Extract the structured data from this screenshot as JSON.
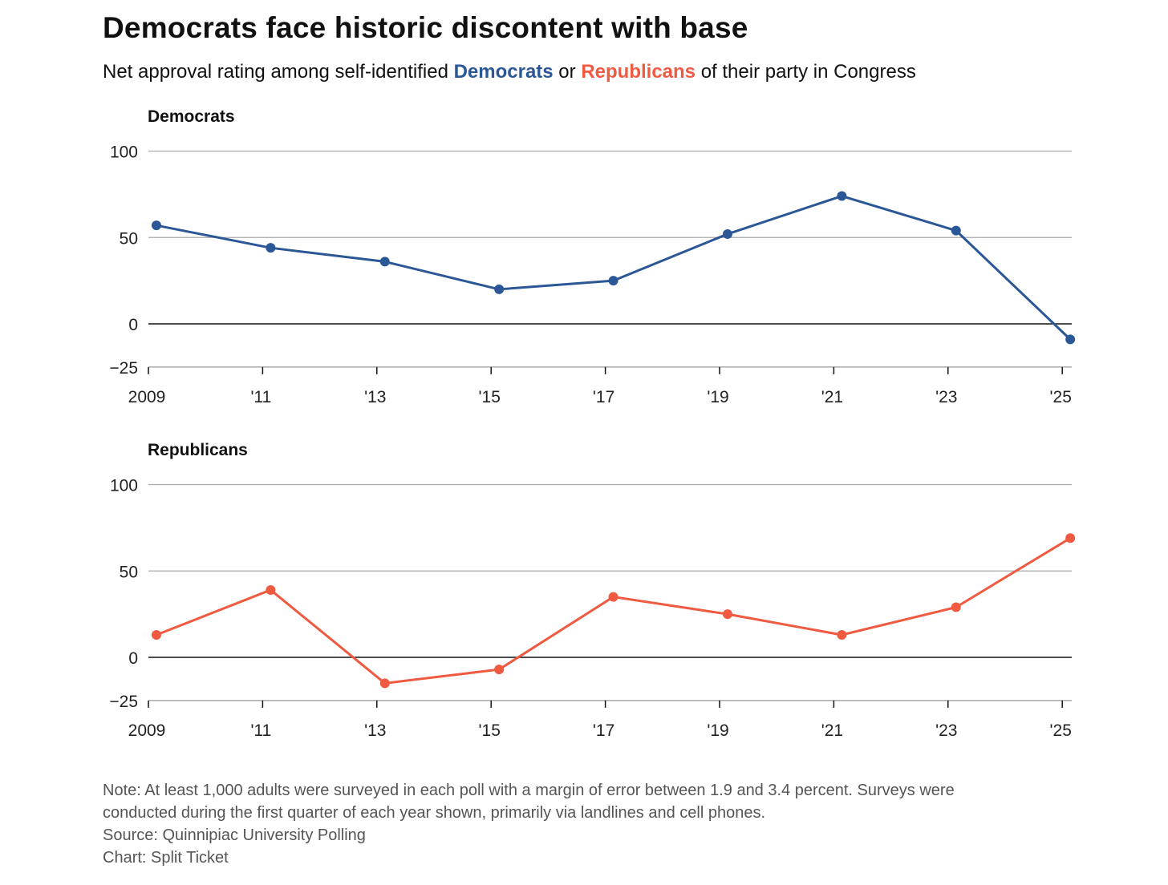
{
  "title": "Democrats face historic discontent with base",
  "subtitle": {
    "before": "Net approval rating among self-identified ",
    "dem": "Democrats",
    "middle": " or ",
    "rep": "Republicans",
    "after": " of their party in Congress"
  },
  "notes": {
    "line1": "Note: At least 1,000 adults were surveyed in each poll with a margin of error between 1.9 and 3.4 percent. Surveys were",
    "line2": "conducted during the first quarter of each year shown, primarily via landlines and cell phones.",
    "source": "Source: Quinnipiac University Polling",
    "credit": "Chart: Split Ticket"
  },
  "chart_data": [
    {
      "type": "line",
      "title": "Democrats",
      "color": "#2b5797",
      "x": [
        2009,
        2011,
        2013,
        2015,
        2017,
        2019,
        2021,
        2023,
        2025
      ],
      "values": [
        57,
        44,
        36,
        20,
        25,
        52,
        74,
        54,
        -9
      ],
      "xticks": [
        "2009",
        "'11",
        "'13",
        "'15",
        "'17",
        "'19",
        "'21",
        "'23",
        "'25"
      ],
      "yticks": [
        100,
        50,
        0,
        -25
      ],
      "ytick_labels": [
        "100",
        "50",
        "0",
        "−25"
      ],
      "ylim": [
        -25,
        100
      ],
      "grid": true
    },
    {
      "type": "line",
      "title": "Republicans",
      "color": "#ef5a40",
      "x": [
        2009,
        2011,
        2013,
        2015,
        2017,
        2019,
        2021,
        2023,
        2025
      ],
      "values": [
        13,
        39,
        -15,
        -7,
        35,
        25,
        13,
        29,
        69
      ],
      "xticks": [
        "2009",
        "'11",
        "'13",
        "'15",
        "'17",
        "'19",
        "'21",
        "'23",
        "'25"
      ],
      "yticks": [
        100,
        50,
        0,
        -25
      ],
      "ytick_labels": [
        "100",
        "50",
        "0",
        "−25"
      ],
      "ylim": [
        -25,
        100
      ],
      "grid": true
    }
  ]
}
